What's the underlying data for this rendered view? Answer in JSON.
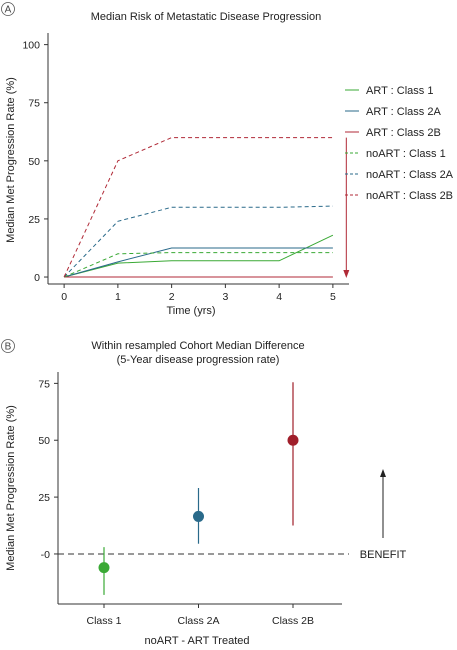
{
  "chart_data": [
    {
      "panel": "A",
      "type": "line",
      "title": "Median Risk of Metastatic Disease Progression",
      "xlabel": "Time (yrs)",
      "ylabel": "Median Met Progression Rate (%)",
      "x": [
        0,
        1,
        2,
        3,
        4,
        5
      ],
      "x_ticks": [
        "0",
        "1",
        "2",
        "3",
        "4",
        "5"
      ],
      "y_ticks": [
        "0",
        "25",
        "50",
        "75",
        "100"
      ],
      "xlim": [
        -0.3,
        5.3
      ],
      "ylim": [
        -3,
        105
      ],
      "grid": false,
      "legend_position": "right",
      "series": [
        {
          "name": "ART : Class 1",
          "color": "#3aa935",
          "dash": "solid",
          "values": [
            0,
            6,
            7,
            7,
            7,
            18
          ]
        },
        {
          "name": "ART : Class 2A",
          "color": "#2a6a8a",
          "dash": "solid",
          "values": [
            0,
            6.5,
            12.5,
            12.5,
            12.5,
            12.5
          ]
        },
        {
          "name": "ART : Class 2B",
          "color": "#b02a37",
          "dash": "solid",
          "values": [
            0,
            0,
            0,
            0,
            0,
            0
          ]
        },
        {
          "name": "noART : Class 1",
          "color": "#3aa935",
          "dash": "dashed",
          "values": [
            0,
            10,
            10.5,
            10.5,
            10.5,
            10.5
          ]
        },
        {
          "name": "noART : Class 2A",
          "color": "#2a6a8a",
          "dash": "dashed",
          "values": [
            0,
            24,
            30,
            30,
            30,
            30.5
          ]
        },
        {
          "name": "noART : Class 2B",
          "color": "#b02a37",
          "dash": "dashed",
          "values": [
            0,
            50,
            60,
            60,
            60,
            60
          ]
        }
      ],
      "annotations": [
        {
          "type": "arrow",
          "color": "#b02a37",
          "direction": "down",
          "x": 5.25,
          "y_from": 60,
          "y_to": 0
        }
      ]
    },
    {
      "panel": "B",
      "type": "scatter",
      "title": "Within resampled Cohort Median Difference",
      "subtitle": "(5-Year disease progression rate)",
      "xlabel": "noART - ART Treated",
      "ylabel": "Median Met Progression Rate (%)",
      "categories": [
        "Class 1",
        "Class 2A",
        "Class 2B"
      ],
      "y_ticks": [
        "-0",
        "25",
        "50",
        "75"
      ],
      "ylim": [
        -22,
        80
      ],
      "grid": false,
      "points": [
        {
          "category": "Class 1",
          "value": -6,
          "low": -18,
          "high": 3,
          "color": "#3aa935"
        },
        {
          "category": "Class 2A",
          "value": 16.5,
          "low": 4.5,
          "high": 29,
          "color": "#2a6a8a"
        },
        {
          "category": "Class 2B",
          "value": 50,
          "low": 12.5,
          "high": 75.5,
          "color": "#a01e2a"
        }
      ],
      "reference_line": {
        "value": 0,
        "style": "dashed"
      },
      "annotations": [
        {
          "type": "arrow",
          "color": "#222222",
          "direction": "up",
          "text": "BENEFIT"
        }
      ]
    }
  ]
}
